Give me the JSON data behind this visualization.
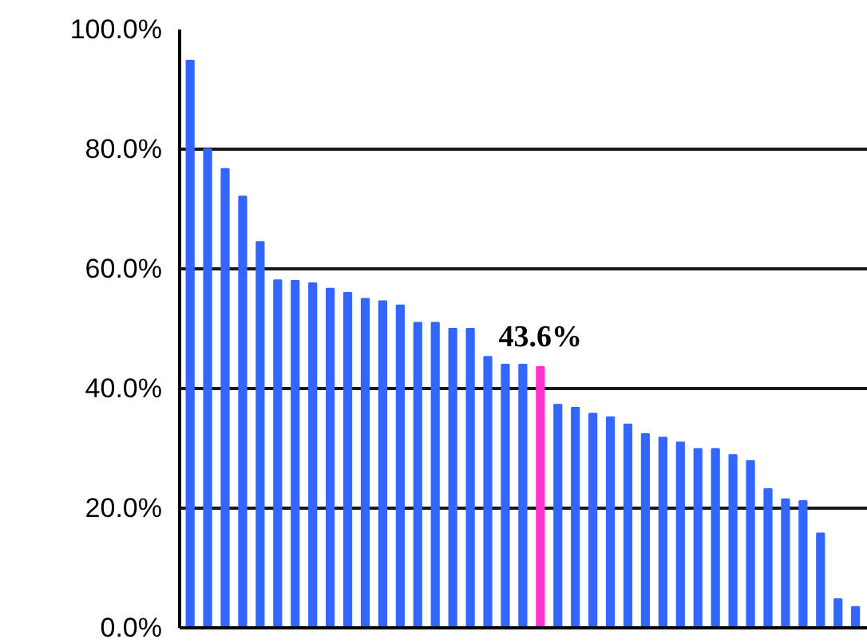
{
  "chart_data": {
    "type": "bar",
    "categories": [
      null,
      null,
      null,
      null,
      null,
      null,
      null,
      null,
      null,
      null,
      null,
      null,
      null,
      null,
      null,
      null,
      null,
      null,
      null,
      null,
      null,
      null,
      null,
      null,
      null,
      null,
      null,
      null,
      null,
      null,
      null,
      null,
      null,
      null,
      null,
      null,
      null,
      null,
      null
    ],
    "values": [
      94.8,
      80.0,
      76.7,
      72.1,
      64.5,
      58.1,
      58.0,
      57.6,
      56.7,
      56.0,
      55.0,
      54.6,
      53.9,
      51.0,
      51.0,
      50.0,
      50.0,
      45.3,
      44.0,
      44.0,
      43.6,
      37.3,
      36.8,
      35.8,
      35.2,
      34.0,
      32.4,
      31.8,
      31.0,
      29.9,
      29.9,
      28.9,
      27.9,
      23.2,
      21.5,
      21.2,
      15.8,
      4.8,
      3.5
    ],
    "colors": [
      "#3366ff",
      "#3366ff",
      "#3366ff",
      "#3366ff",
      "#3366ff",
      "#3366ff",
      "#3366ff",
      "#3366ff",
      "#3366ff",
      "#3366ff",
      "#3366ff",
      "#3366ff",
      "#3366ff",
      "#3366ff",
      "#3366ff",
      "#3366ff",
      "#3366ff",
      "#3366ff",
      "#3366ff",
      "#3366ff",
      "#ff33cc",
      "#3366ff",
      "#3366ff",
      "#3366ff",
      "#3366ff",
      "#3366ff",
      "#3366ff",
      "#3366ff",
      "#3366ff",
      "#3366ff",
      "#3366ff",
      "#3366ff",
      "#3366ff",
      "#3366ff",
      "#3366ff",
      "#3366ff",
      "#3366ff",
      "#3366ff",
      "#3366ff"
    ],
    "value_labels": [
      null,
      null,
      null,
      null,
      null,
      null,
      null,
      null,
      null,
      null,
      null,
      null,
      null,
      null,
      null,
      null,
      null,
      null,
      null,
      null,
      "43.6%",
      null,
      null,
      null,
      null,
      null,
      null,
      null,
      null,
      null,
      null,
      null,
      null,
      null,
      null,
      null,
      null,
      null,
      null
    ],
    "ylim": [
      0,
      100
    ],
    "yticks": [
      {
        "value": 0,
        "label": "0.0%"
      },
      {
        "value": 20,
        "label": "20.0%"
      },
      {
        "value": 40,
        "label": "40.0%"
      },
      {
        "value": 60,
        "label": "60.0%"
      },
      {
        "value": 80,
        "label": "80.0%"
      },
      {
        "value": 100,
        "label": "100.0%"
      }
    ],
    "grid": "y"
  }
}
